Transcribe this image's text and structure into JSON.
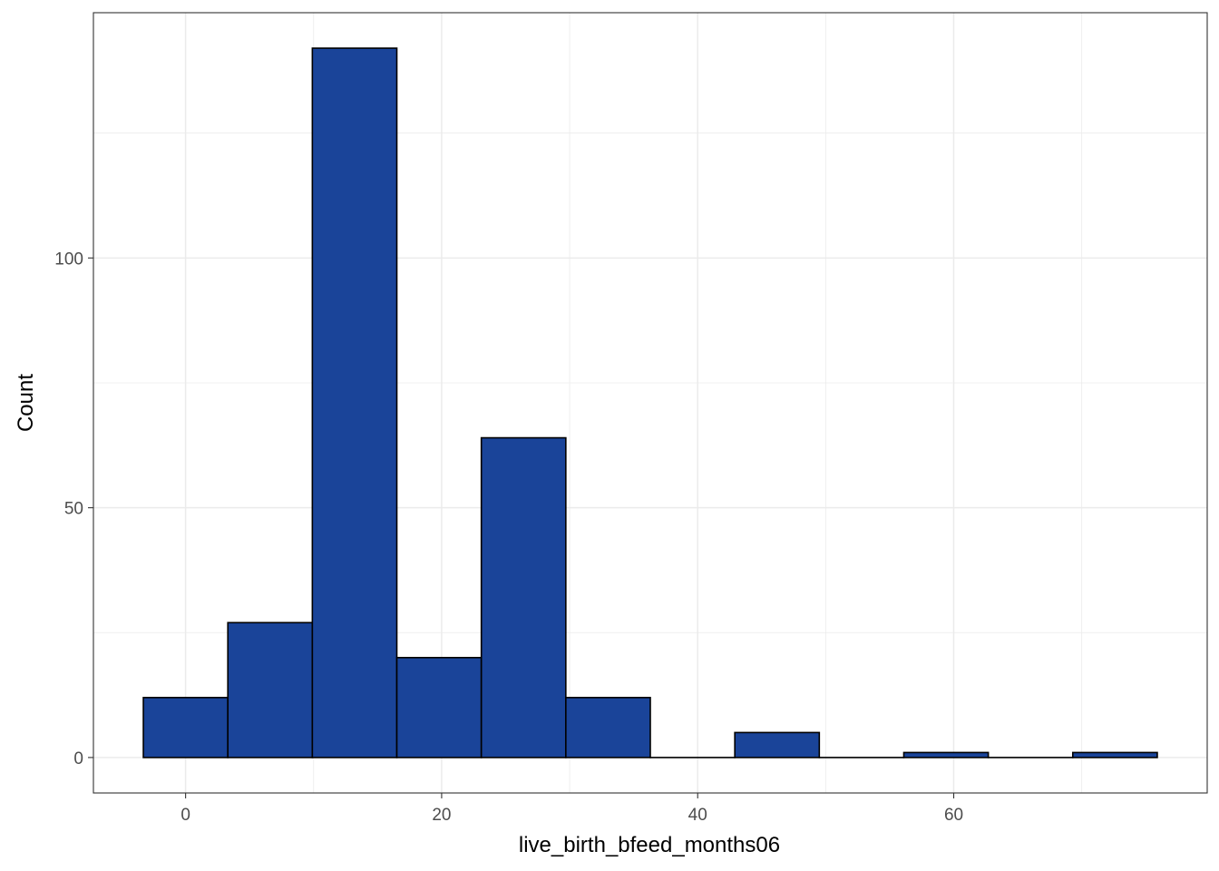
{
  "chart_data": {
    "type": "histogram",
    "xlabel": "live_birth_bfeed_months06",
    "ylabel": "Count",
    "bin_width": 6.6,
    "bins": [
      {
        "start": -3.3,
        "end": 3.3,
        "count": 12
      },
      {
        "start": 3.3,
        "end": 9.9,
        "count": 27
      },
      {
        "start": 9.9,
        "end": 16.5,
        "count": 142
      },
      {
        "start": 16.5,
        "end": 23.1,
        "count": 20
      },
      {
        "start": 23.1,
        "end": 29.7,
        "count": 64
      },
      {
        "start": 29.7,
        "end": 36.3,
        "count": 12
      },
      {
        "start": 36.3,
        "end": 42.9,
        "count": 0
      },
      {
        "start": 42.9,
        "end": 49.5,
        "count": 5
      },
      {
        "start": 49.5,
        "end": 56.1,
        "count": 0
      },
      {
        "start": 56.1,
        "end": 62.7,
        "count": 1
      },
      {
        "start": 62.7,
        "end": 69.3,
        "count": 0
      },
      {
        "start": 69.3,
        "end": 75.9,
        "count": 1
      }
    ],
    "xlim": [
      -7.2,
      79.8
    ],
    "ylim": [
      -7.1,
      149.1
    ],
    "x_ticks": [
      0,
      20,
      40,
      60
    ],
    "x_tick_labels": [
      "0",
      "20",
      "40",
      "60"
    ],
    "y_ticks": [
      0,
      50,
      100
    ],
    "y_tick_labels": [
      "0",
      "50",
      "100"
    ],
    "x_minor": [
      10,
      30,
      50,
      70
    ],
    "y_minor": [
      25,
      75,
      125
    ],
    "grid": true,
    "fill_color": "#1a4499",
    "outline_color": "#000000",
    "grid_color": "#ebebeb"
  }
}
